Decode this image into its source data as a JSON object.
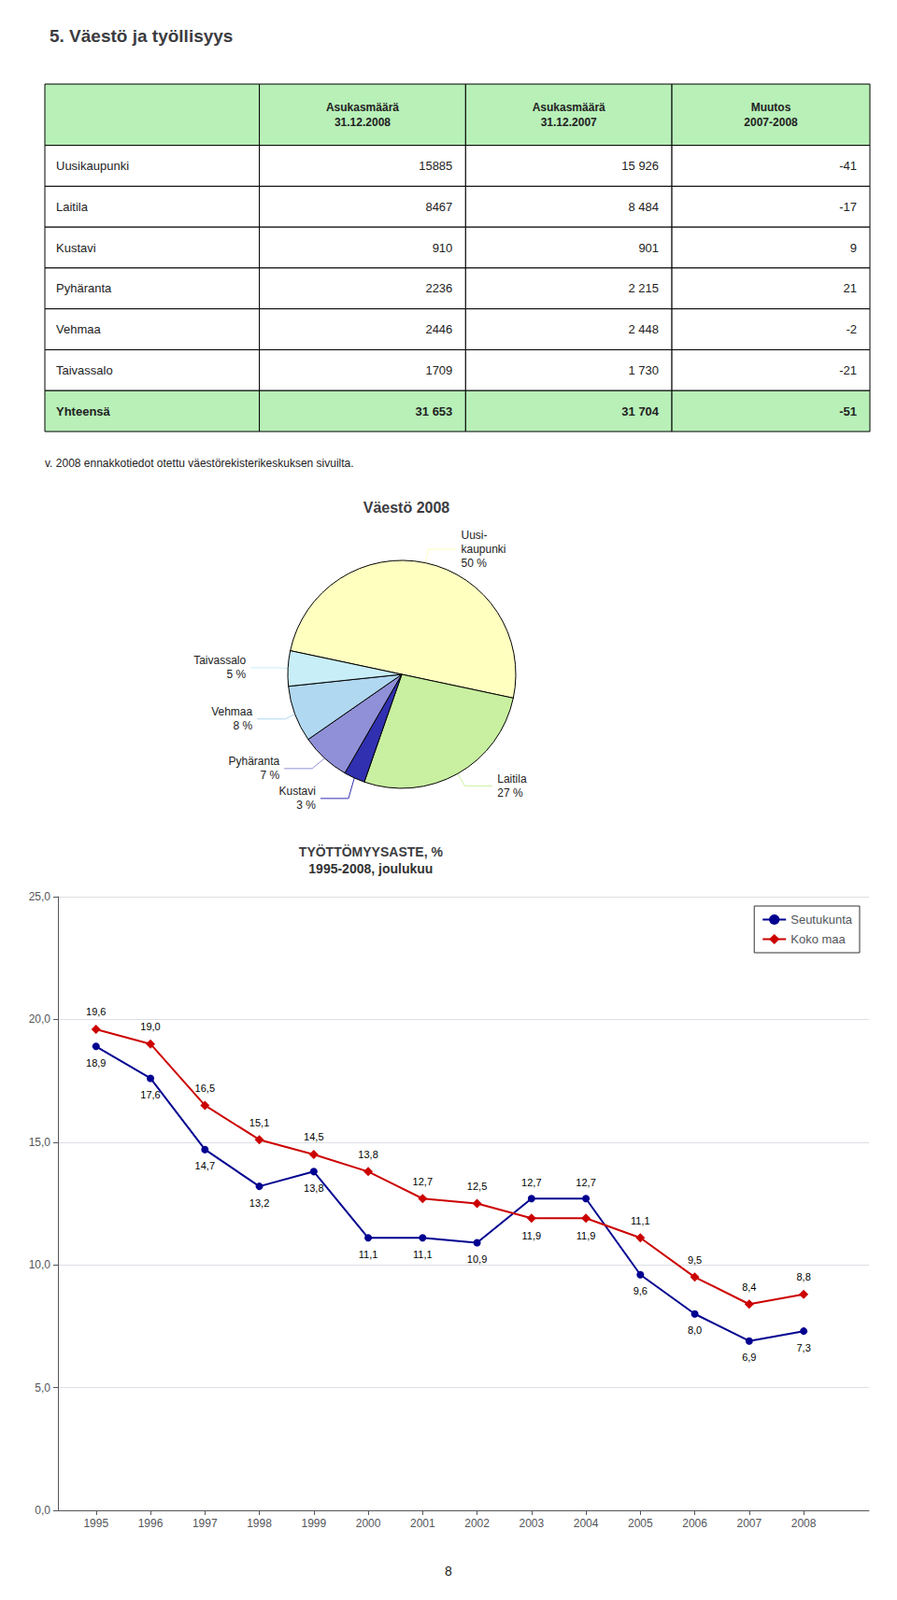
{
  "chart_data": [
    {
      "type": "table",
      "title": "5. Väestö ja työllisyys",
      "columns": [
        null,
        "Asukasmäärä\n31.12.2008",
        "Asukasmäärä\n31.12.2007",
        "Muutos\n2007-2008"
      ],
      "rows": [
        [
          "Uusikaupunki",
          "15885",
          "15 926",
          "-41"
        ],
        [
          "Laitila",
          "8467",
          "8 484",
          "-17"
        ],
        [
          "Kustavi",
          "910",
          "901",
          "9"
        ],
        [
          "Pyhäranta",
          "2236",
          "2 215",
          "21"
        ],
        [
          "Vehmaa",
          "2446",
          "2 448",
          "-2"
        ],
        [
          "Taivassalo",
          "1709",
          "1 730",
          "-21"
        ],
        [
          "Yhteensä",
          "31 653",
          "31 704",
          "-51"
        ]
      ],
      "color": "#b8f0b8"
    },
    {
      "type": "pie",
      "title": "Väestö 2008",
      "annotations": [
        "v. 2008 ennakkotiedot otettu väestörekisterikeskuksen sivuilta."
      ],
      "categories": [
        "Uusi-\nkaupunki",
        "Laitila",
        "Kustavi",
        "Pyhäranta",
        "Vehmaa",
        "Taivassalo"
      ],
      "values": [
        50,
        27,
        3,
        7,
        8,
        5
      ],
      "value_labels": [
        "50 %",
        "27 %",
        "3 %",
        "7 %",
        "8 %",
        "5 %"
      ],
      "colors": [
        "#ffffc0",
        "#c8f0a0",
        "#3030b0",
        "#9090d8",
        "#b0d8f0",
        "#c8eef8"
      ],
      "data_labels": true
    },
    {
      "type": "line",
      "title": "TYÖTTÖMYYSASTE, %",
      "subtitle": "1995-2008, joulukuu",
      "x": [
        1995,
        1996,
        1997,
        1998,
        1999,
        2000,
        2001,
        2002,
        2003,
        2004,
        2005,
        2006,
        2007,
        2008
      ],
      "xlim": [
        1994.3,
        2009.2
      ],
      "xticks": [
        1995,
        1996,
        1997,
        1998,
        1999,
        2000,
        2001,
        2002,
        2003,
        2004,
        2005,
        2006,
        2007,
        2008
      ],
      "ylim": [
        0,
        25
      ],
      "yticks": [
        {
          "value": 0,
          "label": "0,0"
        },
        {
          "value": 5,
          "label": "5,0"
        },
        {
          "value": 10,
          "label": "10,0"
        },
        {
          "value": 15,
          "label": "15,0"
        },
        {
          "value": 20,
          "label": "20,0"
        },
        {
          "value": 25,
          "label": "25,0"
        }
      ],
      "grid": true,
      "legend": "upper right",
      "data_labels": true,
      "series": [
        {
          "name": "Seutukunta",
          "color": "#000090",
          "marker": "circle",
          "values": [
            18.9,
            17.6,
            14.7,
            13.2,
            13.8,
            11.1,
            11.1,
            10.9,
            12.7,
            12.7,
            9.6,
            8.0,
            6.9,
            7.3
          ],
          "value_labels": [
            "18,9",
            "17,6",
            "14,7",
            "13,2",
            "13,8",
            "11,1",
            "11,1",
            "10,9",
            "12,7",
            "12,7",
            "9,6",
            "8,0",
            "6,9",
            "7,3"
          ]
        },
        {
          "name": "Koko maa",
          "color": "#cc0000",
          "marker": "diamond",
          "values": [
            19.6,
            19.0,
            16.5,
            15.1,
            14.5,
            13.8,
            12.7,
            12.5,
            11.9,
            11.9,
            11.1,
            9.5,
            8.4,
            8.8
          ],
          "value_labels": [
            "19,6",
            "19,0",
            "16,5",
            "15,1",
            "14,5",
            "13,8",
            "12,7",
            "12,5",
            "11,9",
            "11,9",
            "11,1",
            "9,5",
            "8,4",
            "8,8"
          ]
        }
      ],
      "annotations": [
        "8"
      ]
    }
  ]
}
